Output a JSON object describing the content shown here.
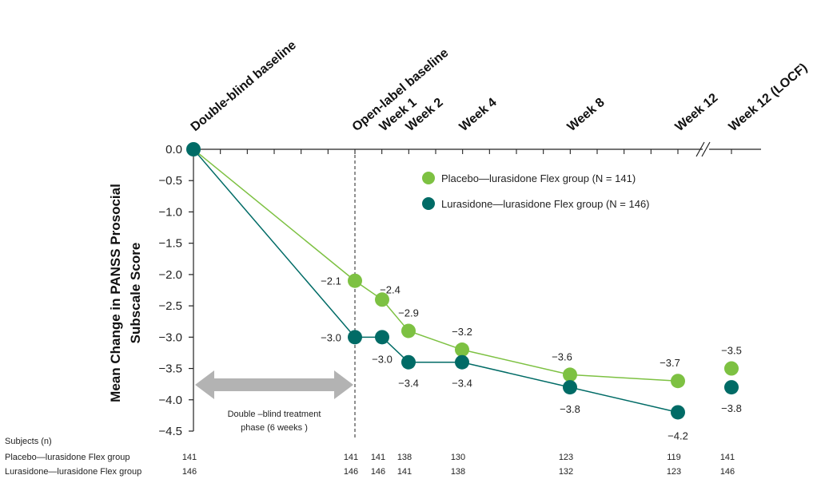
{
  "chart_data": {
    "type": "line",
    "ylabel_line1": "Mean Change in PANSS Prosocial",
    "ylabel_line2": "Subscale Score",
    "ylim": [
      -4.5,
      0.0
    ],
    "yticks": [
      "0.0",
      "−0.5",
      "−1.0",
      "−1.5",
      "−2.0",
      "−2.5",
      "−3.0",
      "−3.5",
      "−4.0",
      "−4.5"
    ],
    "timepoints": [
      "Double-blind baseline",
      "Open-label baseline",
      "Week 1",
      "Week 2",
      "Week 4",
      "Week 8",
      "Week 12",
      "Week 12 (LOCF)"
    ],
    "legend_position": "upper-right",
    "series": [
      {
        "name": "Placebo—lurasidone Flex group (N = 141)",
        "color": "#7dc142",
        "values": [
          0.0,
          -2.1,
          -2.4,
          -2.9,
          -3.2,
          -3.6,
          -3.7,
          -3.5
        ],
        "labels": [
          "",
          "−2.1",
          "−2.4",
          "−2.9",
          "−3.2",
          "−3.6",
          "−3.7",
          "−3.5"
        ]
      },
      {
        "name": "Lurasidone—lurasidone Flex group (N = 146)",
        "color": "#006b66",
        "values": [
          0.0,
          -3.0,
          -3.0,
          -3.4,
          -3.4,
          -3.8,
          -4.2,
          -3.8
        ],
        "labels": [
          "",
          "−3.0",
          "−3.0",
          "−3.4",
          "−3.4",
          "−3.8",
          "−4.2",
          "−3.8"
        ]
      }
    ],
    "annotation": {
      "line1": "Double –blind treatment",
      "line2": "phase (6 weeks )"
    }
  },
  "subjects": {
    "header": "Subjects (n)",
    "rows": [
      {
        "label": "Placebo—lurasidone Flex group",
        "values": [
          "141",
          "141",
          "141",
          "138",
          "130",
          "123",
          "119",
          "141"
        ]
      },
      {
        "label": "Lurasidone—lurasidone Flex group",
        "values": [
          "146",
          "146",
          "146",
          "141",
          "138",
          "132",
          "123",
          "146"
        ]
      }
    ]
  },
  "colors": {
    "placebo": "#7dc142",
    "lurasidone": "#006b66",
    "arrow": "#b3b3b3",
    "axis": "#222222"
  }
}
